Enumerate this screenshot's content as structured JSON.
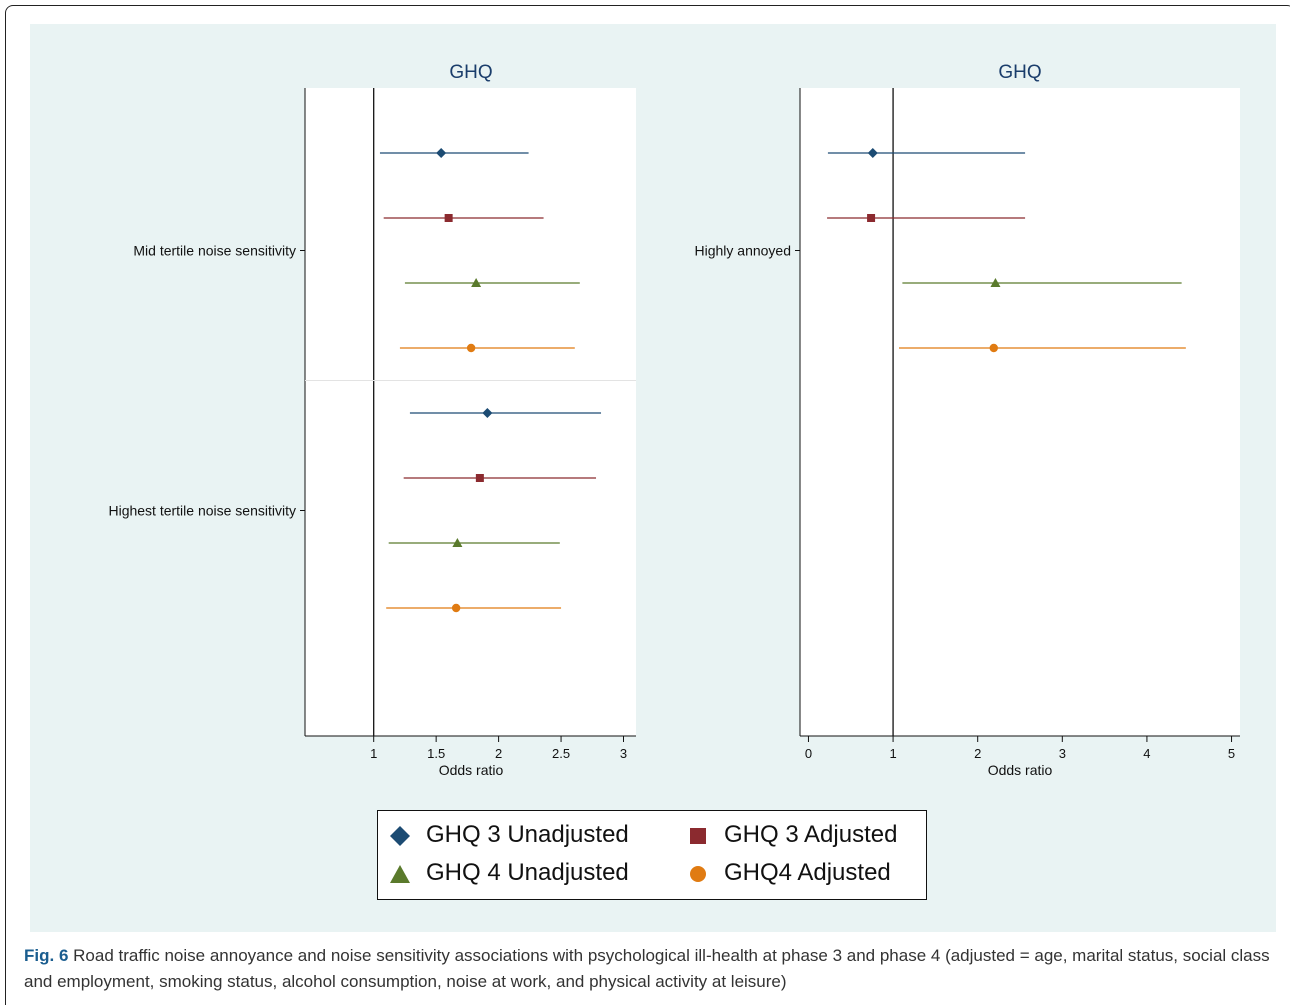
{
  "colors": {
    "background": "#e9f3f3",
    "plot_bg": "#ffffff",
    "title": "#1a3d6b"
  },
  "chart_data": [
    {
      "type": "scatter",
      "subtype": "forest-plot",
      "title": "GHQ",
      "xlabel": "Odds ratio",
      "xlim": [
        0.45,
        3.1
      ],
      "xticks": [
        "1",
        "1.5",
        "2",
        "2.5",
        "3"
      ],
      "xtick_values": [
        1,
        1.5,
        2,
        2.5,
        3
      ],
      "reference_line": 1,
      "groups": [
        {
          "label": "Mid tertile noise sensitivity",
          "separator_after": true
        },
        {
          "label": "Highest tertile noise sensitivity",
          "separator_after": false
        }
      ],
      "series": [
        {
          "name": "GHQ 3 Unadjusted",
          "marker": "diamond",
          "color": "#1c4b73",
          "points": [
            {
              "group": 0,
              "estimate": 1.54,
              "lower": 1.05,
              "upper": 2.24
            },
            {
              "group": 1,
              "estimate": 1.91,
              "lower": 1.29,
              "upper": 2.82
            }
          ]
        },
        {
          "name": "GHQ 3 Adjusted",
          "marker": "square",
          "color": "#8b2a2f",
          "points": [
            {
              "group": 0,
              "estimate": 1.6,
              "lower": 1.08,
              "upper": 2.36
            },
            {
              "group": 1,
              "estimate": 1.85,
              "lower": 1.24,
              "upper": 2.78
            }
          ]
        },
        {
          "name": "GHQ 4 Unadjusted",
          "marker": "triangle",
          "color": "#5a7a2c",
          "points": [
            {
              "group": 0,
              "estimate": 1.82,
              "lower": 1.25,
              "upper": 2.65
            },
            {
              "group": 1,
              "estimate": 1.67,
              "lower": 1.12,
              "upper": 2.49
            }
          ]
        },
        {
          "name": "GHQ4 Adjusted",
          "marker": "circle",
          "color": "#e07b12",
          "points": [
            {
              "group": 0,
              "estimate": 1.78,
              "lower": 1.21,
              "upper": 2.61
            },
            {
              "group": 1,
              "estimate": 1.66,
              "lower": 1.1,
              "upper": 2.5
            }
          ]
        }
      ]
    },
    {
      "type": "scatter",
      "subtype": "forest-plot",
      "title": "GHQ",
      "xlabel": "Odds ratio",
      "xlim": [
        -0.1,
        5.1
      ],
      "xticks": [
        "0",
        "1",
        "2",
        "3",
        "4",
        "5"
      ],
      "xtick_values": [
        0,
        1,
        2,
        3,
        4,
        5
      ],
      "reference_line": 1,
      "groups": [
        {
          "label": "Highly annoyed",
          "separator_after": false
        }
      ],
      "series": [
        {
          "name": "GHQ 3 Unadjusted",
          "marker": "diamond",
          "color": "#1c4b73",
          "points": [
            {
              "group": 0,
              "estimate": 0.76,
              "lower": 0.23,
              "upper": 2.56
            }
          ]
        },
        {
          "name": "GHQ 3 Adjusted",
          "marker": "square",
          "color": "#8b2a2f",
          "points": [
            {
              "group": 0,
              "estimate": 0.74,
              "lower": 0.22,
              "upper": 2.56
            }
          ]
        },
        {
          "name": "GHQ 4 Unadjusted",
          "marker": "triangle",
          "color": "#5a7a2c",
          "points": [
            {
              "group": 0,
              "estimate": 2.21,
              "lower": 1.11,
              "upper": 4.41
            }
          ]
        },
        {
          "name": "GHQ4 Adjusted",
          "marker": "circle",
          "color": "#e07b12",
          "points": [
            {
              "group": 0,
              "estimate": 2.19,
              "lower": 1.07,
              "upper": 4.46
            }
          ]
        }
      ]
    }
  ],
  "legend": {
    "items": [
      {
        "label": "GHQ 3 Unadjusted",
        "marker": "diamond",
        "color": "#1c4b73"
      },
      {
        "label": "GHQ 3 Adjusted",
        "marker": "square",
        "color": "#8b2a2f"
      },
      {
        "label": "GHQ 4 Unadjusted",
        "marker": "triangle",
        "color": "#5a7a2c"
      },
      {
        "label": "GHQ4 Adjusted",
        "marker": "circle",
        "color": "#e07b12"
      }
    ]
  },
  "caption": {
    "label": "Fig. 6",
    "text": " Road traffic noise annoyance and noise sensitivity associations with psychological ill-health at phase 3 and phase 4 (adjusted = age, marital status, social class and employment, smoking status, alcohol consumption, noise at work, and physical activity at leisure)"
  }
}
